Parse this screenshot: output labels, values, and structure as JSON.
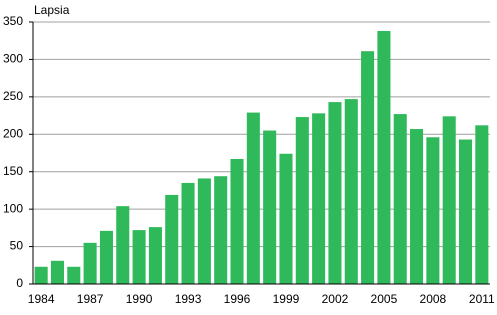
{
  "chart_data": {
    "type": "bar",
    "y_label": "Lapsia",
    "categories": [
      "1984",
      null,
      null,
      "1987",
      null,
      null,
      "1990",
      null,
      null,
      "1993",
      null,
      null,
      "1996",
      null,
      null,
      "1999",
      null,
      null,
      "2002",
      null,
      null,
      "2005",
      null,
      null,
      "2008",
      null,
      null,
      "2011"
    ],
    "values": [
      23,
      31,
      23,
      55,
      71,
      104,
      72,
      76,
      119,
      135,
      141,
      144,
      167,
      229,
      205,
      174,
      223,
      228,
      243,
      247,
      311,
      338,
      227,
      207,
      196,
      224,
      193,
      212
    ],
    "color": "#2fb95a",
    "ylim": [
      0,
      350
    ],
    "yticks": [
      0,
      50,
      100,
      150,
      200,
      250,
      300,
      350
    ],
    "grid": true
  }
}
